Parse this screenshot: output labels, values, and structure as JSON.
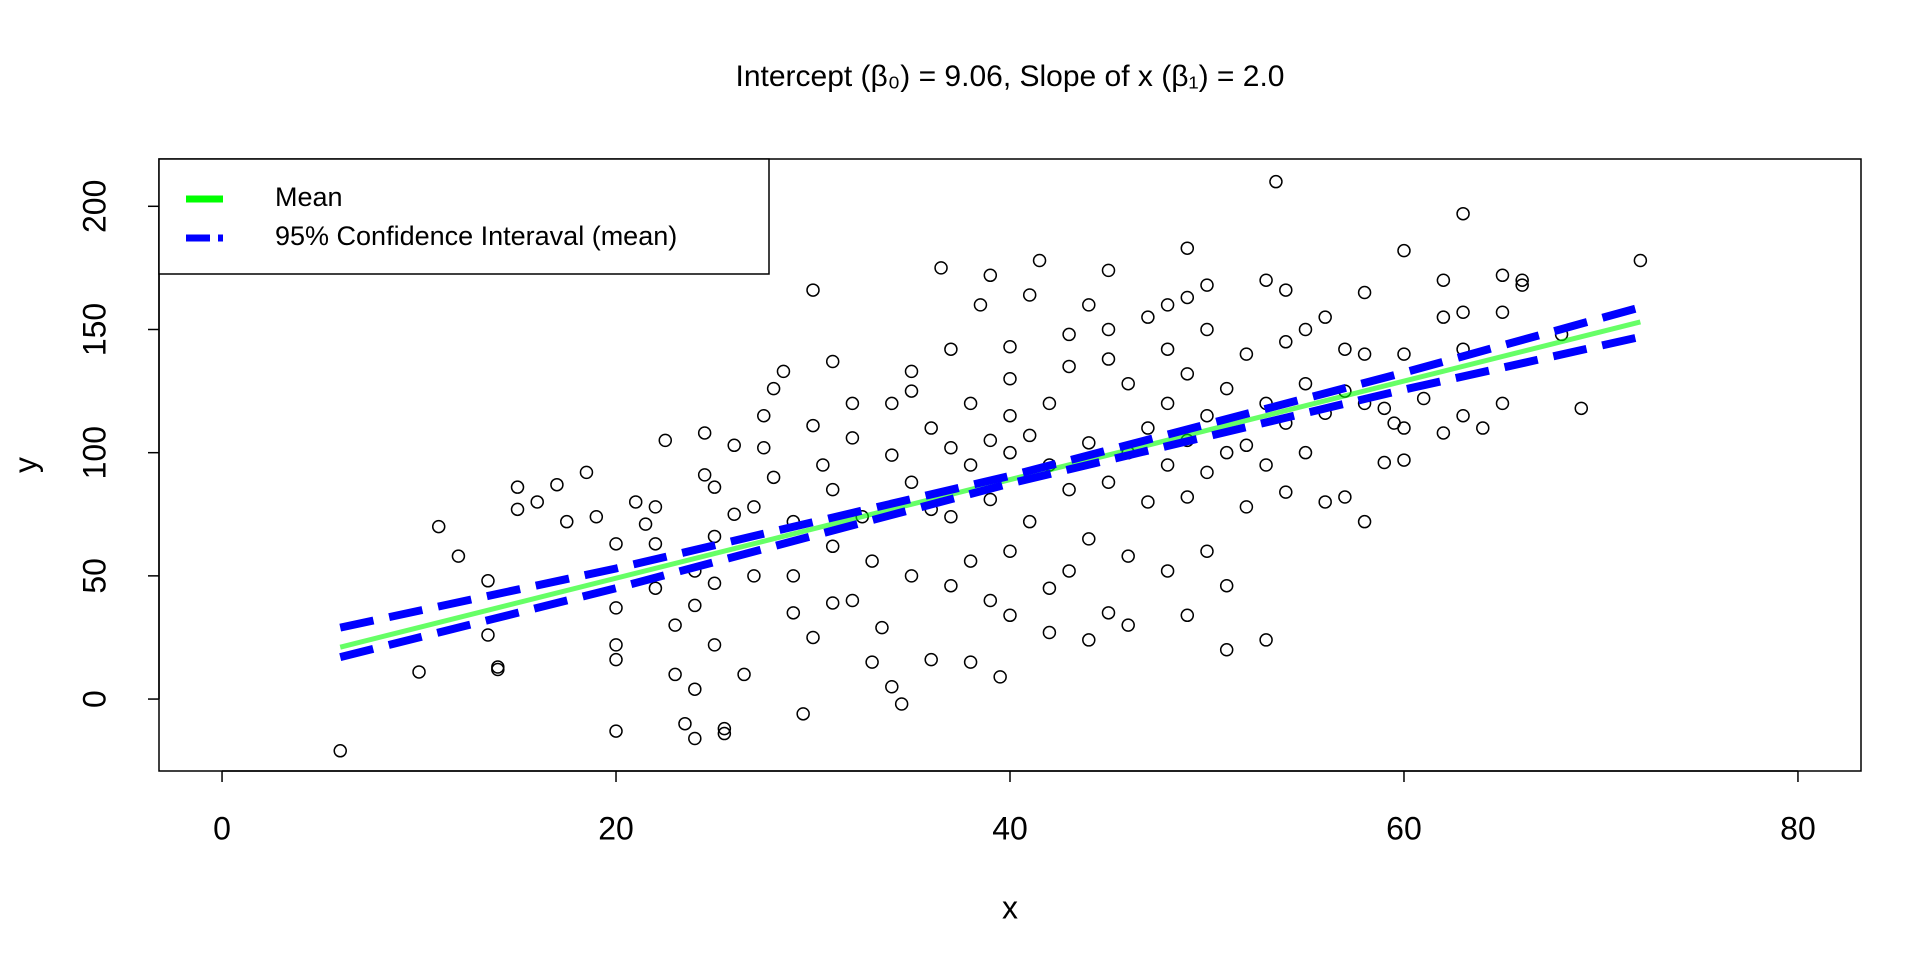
{
  "chart_data": {
    "type": "scatter",
    "title": "Intercept (β₀) = 9.06, Slope of x (β₁) = 2.0",
    "x_label": "x",
    "y_label": "y",
    "xlim": [
      -3.2,
      83.2
    ],
    "xticks": [
      0,
      20,
      40,
      60,
      80
    ],
    "ylim": [
      -29.2,
      219.2
    ],
    "yticks": [
      0,
      50,
      100,
      150,
      200
    ],
    "legend": "top-left",
    "points": {
      "color": "#000000",
      "x": [
        6,
        53.5,
        63,
        72,
        10,
        11,
        12,
        14,
        14,
        13.5,
        13.5,
        15,
        15,
        16,
        17,
        17.5,
        18.5,
        19,
        20,
        20,
        20,
        20,
        20,
        21,
        21.5,
        22,
        22,
        22,
        22.5,
        23,
        23,
        23.5,
        24,
        24,
        24,
        24,
        24.5,
        24.5,
        25,
        25,
        25,
        25,
        25.5,
        25.5,
        26,
        26,
        26.5,
        27,
        27,
        27.5,
        27.5,
        28,
        28,
        28.5,
        29,
        29,
        29,
        29.5,
        30,
        30,
        30,
        30.5,
        31,
        31,
        31,
        31,
        32,
        32,
        32,
        32.5,
        33,
        33,
        33.5,
        34,
        34,
        34,
        34.5,
        35,
        35,
        35,
        35,
        36,
        36,
        36,
        36.5,
        37,
        37,
        37,
        37,
        38,
        38,
        38,
        38,
        38.5,
        39,
        39,
        39,
        39,
        39.5,
        40,
        40,
        40,
        40,
        40,
        40,
        41,
        41,
        41,
        41.5,
        42,
        42,
        42,
        42,
        43,
        43,
        43,
        43,
        44,
        44,
        44,
        44,
        45,
        45,
        45,
        45,
        45,
        46,
        46,
        46,
        46,
        47,
        47,
        47,
        48,
        48,
        48,
        48,
        48,
        49,
        49,
        49,
        49,
        49,
        49,
        50,
        50,
        50,
        50,
        50,
        51,
        51,
        51,
        51,
        52,
        52,
        52,
        53,
        53,
        53,
        53,
        54,
        54,
        54,
        54,
        55,
        55,
        55,
        56,
        56,
        56,
        57,
        57,
        57,
        58,
        58,
        58,
        58,
        59,
        59,
        59.5,
        60,
        60,
        60,
        60,
        61,
        62,
        62,
        62,
        63,
        63,
        63,
        64,
        65,
        65,
        65,
        66,
        66,
        68,
        69
      ],
      "y": [
        -21,
        210,
        197,
        178,
        11,
        70,
        58,
        12,
        13,
        48,
        26,
        86,
        77,
        80,
        87,
        72,
        92,
        74,
        63,
        37,
        22,
        16,
        -13,
        80,
        71,
        78,
        63,
        45,
        105,
        30,
        10,
        -10,
        -16,
        4,
        52,
        38,
        108,
        91,
        86,
        66,
        47,
        22,
        -12,
        -14,
        103,
        75,
        10,
        78,
        50,
        115,
        102,
        126,
        90,
        133,
        72,
        50,
        35,
        -6,
        166,
        111,
        25,
        95,
        137,
        85,
        62,
        39,
        120,
        106,
        40,
        74,
        15,
        56,
        29,
        5,
        99,
        120,
        -2,
        125,
        133,
        88,
        50,
        110,
        77,
        16,
        175,
        142,
        102,
        74,
        46,
        120,
        95,
        56,
        15,
        160,
        172,
        105,
        81,
        40,
        9,
        143,
        130,
        115,
        100,
        60,
        34,
        72,
        107,
        164,
        178,
        120,
        95,
        45,
        27,
        148,
        135,
        85,
        52,
        160,
        104,
        65,
        24,
        174,
        150,
        138,
        88,
        35,
        128,
        100,
        58,
        30,
        155,
        110,
        80,
        160,
        142,
        120,
        95,
        52,
        183,
        163,
        132,
        105,
        82,
        34,
        168,
        150,
        115,
        92,
        60,
        20,
        126,
        100,
        46,
        78,
        140,
        103,
        170,
        120,
        95,
        24,
        166,
        145,
        112,
        84,
        150,
        128,
        100,
        155,
        116,
        80,
        142,
        125,
        82,
        165,
        140,
        120,
        72,
        96,
        118,
        112,
        182,
        140,
        97,
        110,
        122,
        170,
        155,
        108,
        157,
        142,
        115,
        110,
        172,
        157,
        120,
        170,
        168,
        148,
        118
      ]
    },
    "series": [
      {
        "name": "Mean",
        "color": "#00ff00",
        "x": [
          6,
          72
        ],
        "values": [
          21.06,
          153.06
        ]
      },
      {
        "name": "95% Confidence Interaval (mean)",
        "color": "#0000ff",
        "x": [
          6,
          20,
          40,
          60,
          72
        ],
        "upper": [
          29,
          53,
          90.6,
          132.5,
          159
        ],
        "lower": [
          17,
          45,
          87.5,
          125.6,
          147
        ]
      }
    ]
  }
}
